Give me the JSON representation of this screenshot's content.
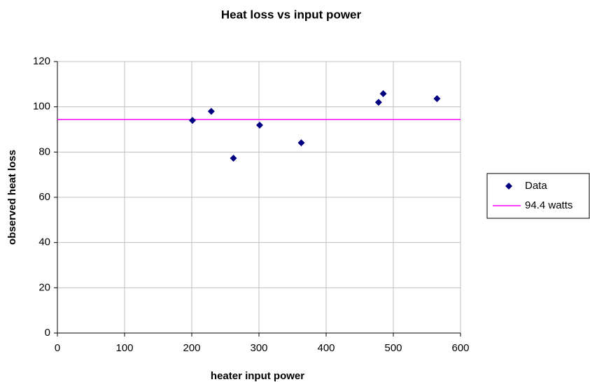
{
  "chart_data": {
    "type": "scatter",
    "title": "Heat loss vs input power",
    "x_label": "heater input power",
    "y_label": "observed heat loss",
    "series": [
      {
        "name": "Data",
        "color": "#000080",
        "x": [
          201,
          229,
          262,
          301,
          363,
          478,
          485,
          565
        ],
        "values": [
          94,
          98,
          77.3,
          91.9,
          84.1,
          102,
          105.8,
          103.6
        ]
      }
    ],
    "reference_line": {
      "name": "94.4 watts",
      "value": 94.4,
      "color": "#ff00ff"
    },
    "xlim": [
      0,
      600
    ],
    "xticks": [
      0,
      100,
      200,
      300,
      400,
      500,
      600
    ],
    "ylim": [
      0,
      120
    ],
    "yticks": [
      0,
      20,
      40,
      60,
      80,
      100,
      120
    ],
    "grid": true,
    "legend": "right"
  }
}
